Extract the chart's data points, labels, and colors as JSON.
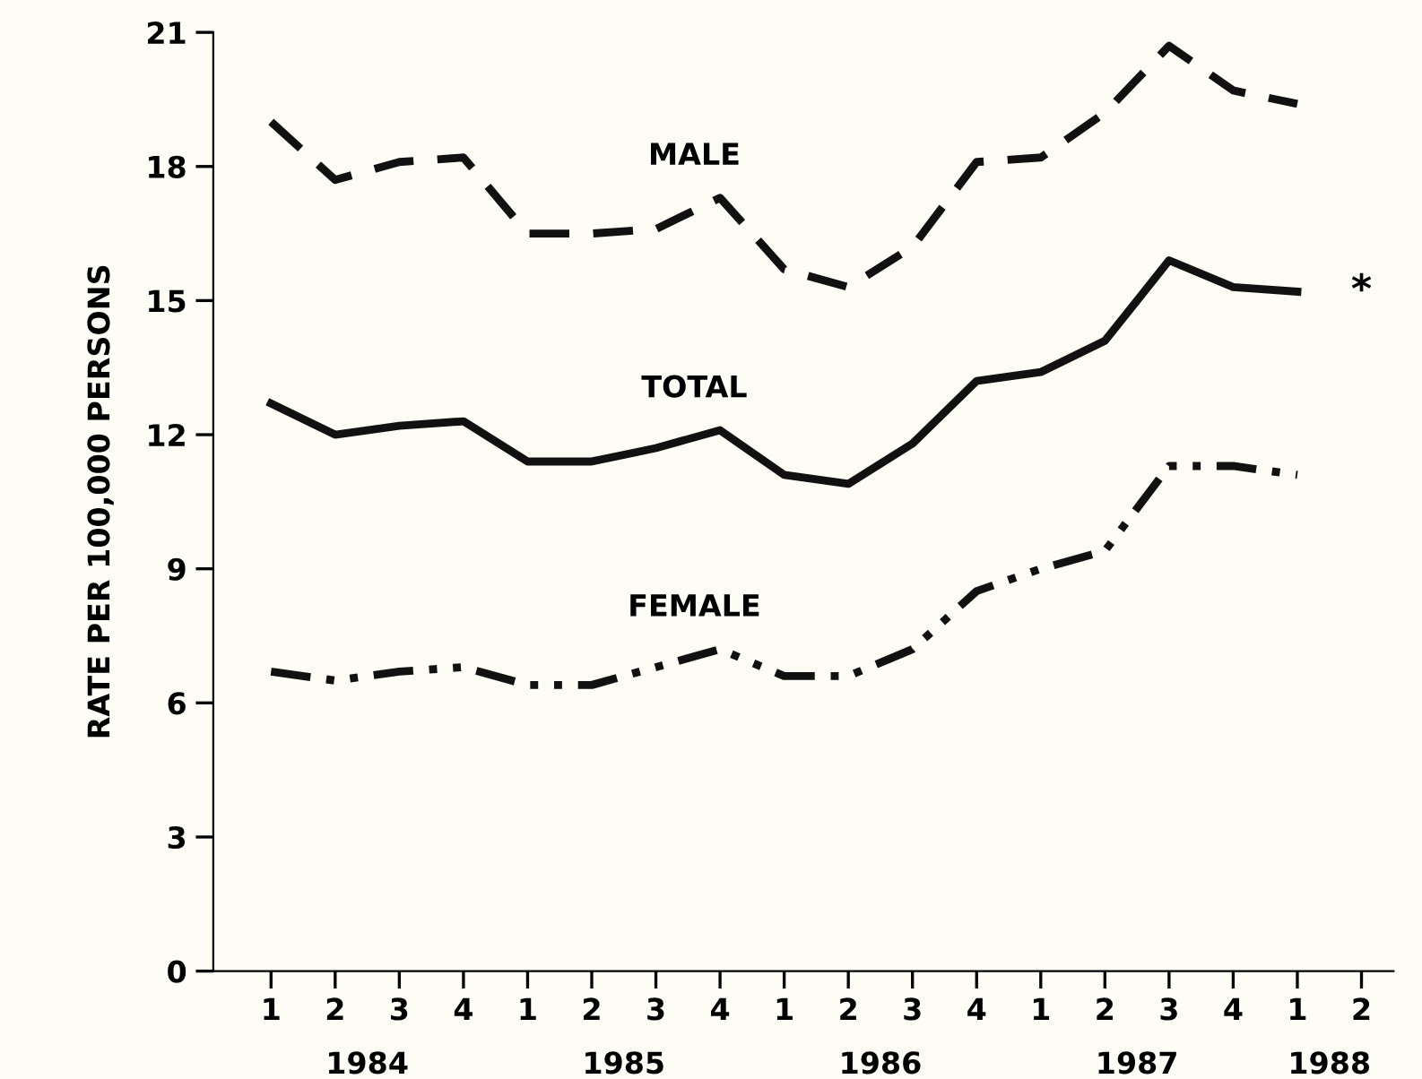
{
  "chart_data": {
    "type": "line",
    "ylabel": "RATE PER 100,000 PERSONS",
    "categories": [
      "1",
      "2",
      "3",
      "4",
      "1",
      "2",
      "3",
      "4",
      "1",
      "2",
      "3",
      "4",
      "1",
      "2",
      "3",
      "4",
      "1",
      "2"
    ],
    "series": [
      {
        "name": "MALE",
        "color": "#111111",
        "line_style": "dashed",
        "values": [
          19.0,
          17.7,
          18.1,
          18.2,
          16.5,
          16.5,
          16.6,
          17.3,
          15.7,
          15.3,
          16.2,
          18.1,
          18.2,
          19.2,
          20.7,
          19.7,
          19.4,
          null
        ]
      },
      {
        "name": "TOTAL",
        "color": "#111111",
        "line_style": "solid",
        "values": [
          12.7,
          12.0,
          12.2,
          12.3,
          11.4,
          11.4,
          11.7,
          12.1,
          11.1,
          10.9,
          11.8,
          13.2,
          13.4,
          14.1,
          15.9,
          15.3,
          15.2,
          null
        ]
      },
      {
        "name": "FEMALE",
        "color": "#111111",
        "line_style": "dashdotdot",
        "values": [
          6.7,
          6.5,
          6.7,
          6.8,
          6.4,
          6.4,
          6.8,
          7.2,
          6.6,
          6.6,
          7.2,
          8.5,
          9.0,
          9.4,
          11.3,
          11.3,
          11.1,
          null
        ]
      }
    ],
    "ylim": [
      0,
      21
    ],
    "yticks": [
      0,
      3,
      6,
      9,
      12,
      15,
      18,
      21
    ],
    "grid": false,
    "legend": false,
    "marker": "none",
    "annotations": [
      "1984",
      "1985",
      "1986",
      "1987",
      "1988",
      "*"
    ]
  }
}
